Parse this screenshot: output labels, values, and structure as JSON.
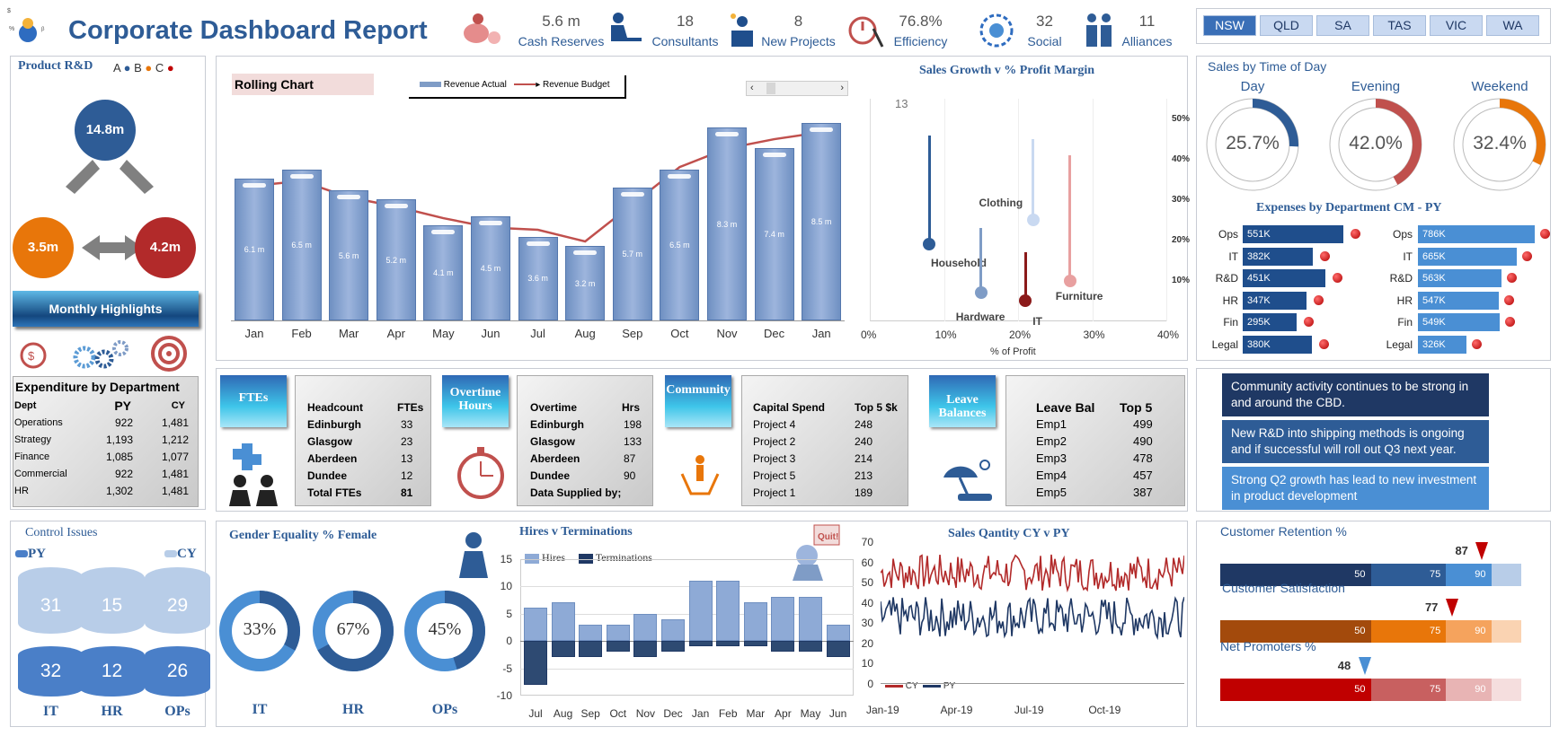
{
  "header": {
    "title": "Corporate Dashboard Report",
    "kpis": [
      {
        "value": "5.6 m",
        "label": "Cash Reserves"
      },
      {
        "value": "18",
        "label": "Consultants"
      },
      {
        "value": "8",
        "label": "New Projects"
      },
      {
        "value": "76.8%",
        "label": "Efficiency"
      },
      {
        "value": "32",
        "label": "Social"
      },
      {
        "value": "11",
        "label": "Alliances"
      }
    ],
    "states": [
      "NSW",
      "QLD",
      "SA",
      "TAS",
      "VIC",
      "WA"
    ],
    "selected_state": "NSW"
  },
  "product_rd": {
    "title": "Product R&D",
    "legend": [
      "A",
      "B",
      "C"
    ],
    "a": "14.8m",
    "b": "3.5m",
    "c": "4.2m",
    "highlights": "Monthly Highlights"
  },
  "expenditure": {
    "title": "Expenditure by Department",
    "headers": [
      "Dept",
      "PY",
      "CY"
    ],
    "rows": [
      [
        "Operations",
        "922",
        "1,481"
      ],
      [
        "Strategy",
        "1,193",
        "1,212"
      ],
      [
        "Finance",
        "1,085",
        "1,077"
      ],
      [
        "Commercial",
        "922",
        "1,481"
      ],
      [
        "HR",
        "1,302",
        "1,481"
      ]
    ]
  },
  "rolling": {
    "title": "Rolling Chart",
    "legend_actual": "Revenue Actual",
    "legend_budget": "Revenue Budget"
  },
  "growth": {
    "title": "Sales Growth v % Profit Margin",
    "xlabel": "% of Profit",
    "annotation": "13",
    "labels": [
      "Household",
      "Hardware",
      "Clothing",
      "IT",
      "Furniture"
    ]
  },
  "time_of_day": {
    "title": "Sales by Time of Day",
    "items": [
      {
        "label": "Day",
        "value": "25.7%"
      },
      {
        "label": "Evening",
        "value": "42.0%"
      },
      {
        "label": "Weekend",
        "value": "32.4%"
      }
    ]
  },
  "expenses": {
    "title": "Expenses by Department CM - PY",
    "depts": [
      "Ops",
      "IT",
      "R&D",
      "HR",
      "Fin",
      "Legal"
    ],
    "cm": [
      "551K",
      "382K",
      "451K",
      "347K",
      "295K",
      "380K"
    ],
    "py": [
      "786K",
      "665K",
      "563K",
      "547K",
      "549K",
      "326K"
    ]
  },
  "ftes": {
    "tile": "FTEs",
    "h1": "Headcount",
    "h2": "FTEs",
    "rows": [
      [
        "Edinburgh",
        "33"
      ],
      [
        "Glasgow",
        "23"
      ],
      [
        "Aberdeen",
        "13"
      ],
      [
        "Dundee",
        "12"
      ],
      [
        "Total FTEs",
        "81"
      ]
    ]
  },
  "overtime": {
    "tile": "Overtime Hours",
    "h1": "Overtime",
    "h2": "Hrs",
    "rows": [
      [
        "Edinburgh",
        "198"
      ],
      [
        "Glasgow",
        "133"
      ],
      [
        "Aberdeen",
        "87"
      ],
      [
        "Dundee",
        "90"
      ],
      [
        "Data Supplied by;",
        ""
      ]
    ]
  },
  "community": {
    "tile": "Community",
    "h1": "Capital Spend",
    "h2": "Top 5 $k",
    "rows": [
      [
        "Project 4",
        "248"
      ],
      [
        "Project 2",
        "240"
      ],
      [
        "Project 3",
        "214"
      ],
      [
        "Project 5",
        "213"
      ],
      [
        "Project 1",
        "189"
      ]
    ]
  },
  "leave": {
    "tile": "Leave Balances",
    "h1": "Leave Bal",
    "h2": "Top 5",
    "rows": [
      [
        "Emp1",
        "499"
      ],
      [
        "Emp2",
        "490"
      ],
      [
        "Emp3",
        "478"
      ],
      [
        "Emp4",
        "457"
      ],
      [
        "Emp5",
        "387"
      ]
    ]
  },
  "notes": [
    "Community activity continues to be strong in and around the CBD.",
    "New R&D into shipping methods is ongoing and if successful will roll out Q3 next year.",
    "Strong Q2 growth has lead to new investment in product development"
  ],
  "control": {
    "title": "Control Issues",
    "py": "PY",
    "cy": "CY",
    "cats": [
      "IT",
      "HR",
      "OPs"
    ],
    "py_vals": [
      "32",
      "12",
      "26"
    ],
    "cy_vals": [
      "31",
      "15",
      "29"
    ]
  },
  "gender": {
    "title": "Gender Equality % Female",
    "items": [
      {
        "label": "IT",
        "value": "33%",
        "pct": 33
      },
      {
        "label": "HR",
        "value": "67%",
        "pct": 67
      },
      {
        "label": "OPs",
        "value": "45%",
        "pct": 45
      }
    ]
  },
  "hires": {
    "title": "Hires v Terminations",
    "legend": [
      "Hires",
      "Terminations"
    ]
  },
  "sales_qty": {
    "title": "Sales Qantity CY v PY",
    "legend": [
      "CY",
      "PY"
    ]
  },
  "retention": [
    {
      "title": "Customer Retention %",
      "marker": "87",
      "segs": [
        "50",
        "75",
        "90"
      ],
      "marker_pct": 87
    },
    {
      "title": "Customer Satisfaction",
      "marker": "77",
      "segs": [
        "50",
        "75",
        "90"
      ],
      "marker_pct": 77
    },
    {
      "title": "Net Promoters %",
      "marker": "48",
      "segs": [
        "50",
        "75",
        "90"
      ],
      "marker_pct": 48
    }
  ],
  "chart_data": [
    {
      "type": "bar",
      "title": "Rolling Chart",
      "categories": [
        "Jan",
        "Feb",
        "Mar",
        "Apr",
        "May",
        "Jun",
        "Jul",
        "Aug",
        "Sep",
        "Oct",
        "Nov",
        "Dec",
        "Jan"
      ],
      "series": [
        {
          "name": "Revenue Actual",
          "values": [
            6.1,
            6.5,
            5.6,
            5.2,
            4.1,
            4.5,
            3.6,
            3.2,
            5.7,
            6.5,
            8.3,
            7.4,
            8.5
          ]
        },
        {
          "name": "Revenue Budget",
          "values": [
            5.8,
            6.0,
            5.3,
            4.9,
            4.4,
            4.0,
            3.9,
            3.4,
            5.0,
            6.6,
            7.4,
            7.8,
            8.1
          ]
        }
      ],
      "labels": [
        "6.1 m",
        "6.5 m",
        "5.6 m",
        "5.2 m",
        "4.1 m",
        "4.5 m",
        "3.6 m",
        "3.2 m",
        "5.7 m",
        "6.5 m",
        "8.3 m",
        "7.4 m",
        "8.5 m"
      ],
      "ylim": [
        0,
        9
      ]
    },
    {
      "type": "scatter",
      "title": "Sales Growth v % Profit Margin",
      "xlabel": "% of Profit",
      "xticks": [
        "0%",
        "10%",
        "20%",
        "30%",
        "40%"
      ],
      "yticks": [
        "10%",
        "20%",
        "30%",
        "40%",
        "50%"
      ],
      "points": [
        {
          "name": "Household",
          "x": 8,
          "y": 19,
          "top": 46
        },
        {
          "name": "Hardware",
          "x": 15,
          "y": 7,
          "top": 23
        },
        {
          "name": "Clothing",
          "x": 22,
          "y": 25,
          "top": 45
        },
        {
          "name": "IT",
          "x": 21,
          "y": 5,
          "top": 17
        },
        {
          "name": "Furniture",
          "x": 27,
          "y": 10,
          "top": 41
        }
      ]
    },
    {
      "type": "pie",
      "title": "Sales by Time of Day",
      "values": [
        25.7,
        42.0,
        32.4
      ],
      "labels": [
        "Day",
        "Evening",
        "Weekend"
      ]
    },
    {
      "type": "bar",
      "title": "Expenses by Department CM - PY",
      "categories": [
        "Ops",
        "IT",
        "R&D",
        "HR",
        "Fin",
        "Legal"
      ],
      "series": [
        {
          "name": "CM",
          "values": [
            551,
            382,
            451,
            347,
            295,
            380
          ]
        },
        {
          "name": "PY",
          "values": [
            786,
            665,
            563,
            547,
            549,
            326
          ]
        }
      ]
    },
    {
      "type": "bar",
      "title": "Control Issues",
      "categories": [
        "IT",
        "HR",
        "OPs"
      ],
      "series": [
        {
          "name": "PY",
          "values": [
            32,
            12,
            26
          ]
        },
        {
          "name": "CY",
          "values": [
            31,
            15,
            29
          ]
        }
      ]
    },
    {
      "type": "pie",
      "title": "Gender Equality % Female",
      "categories": [
        "IT",
        "HR",
        "OPs"
      ],
      "values": [
        33,
        67,
        45
      ]
    },
    {
      "type": "bar",
      "title": "Hires v Terminations",
      "categories": [
        "Jul",
        "Aug",
        "Sep",
        "Oct",
        "Nov",
        "Dec",
        "Jan",
        "Feb",
        "Mar",
        "Apr",
        "May",
        "Jun"
      ],
      "series": [
        {
          "name": "Hires",
          "values": [
            6,
            7,
            3,
            3,
            5,
            4,
            11,
            11,
            7,
            8,
            8,
            3
          ]
        },
        {
          "name": "Terminations",
          "values": [
            -8,
            -3,
            -3,
            -2,
            -3,
            -2,
            -1,
            -1,
            -1,
            -2,
            -2,
            -3
          ]
        }
      ],
      "ylim": [
        -10,
        15
      ],
      "yticks": [
        "15",
        "10",
        "5",
        "0",
        "-5",
        "-10"
      ]
    },
    {
      "type": "line",
      "title": "Sales Qantity CY v PY",
      "x": [
        "Jan-19",
        "Apr-19",
        "Jul-19",
        "Oct-19"
      ],
      "yticks": [
        "70",
        "60",
        "50",
        "40",
        "30",
        "20",
        "10",
        "0"
      ],
      "series": [
        {
          "name": "CY",
          "mean": 55
        },
        {
          "name": "PY",
          "mean": 33
        }
      ],
      "ylim": [
        0,
        70
      ]
    }
  ]
}
